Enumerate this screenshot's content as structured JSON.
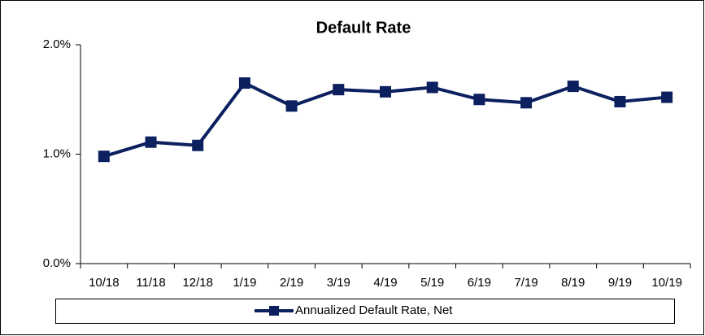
{
  "chart_data": {
    "type": "line",
    "title": "Default Rate",
    "categories": [
      "10/18",
      "11/18",
      "12/18",
      "1/19",
      "2/19",
      "3/19",
      "4/19",
      "5/19",
      "6/19",
      "7/19",
      "8/19",
      "9/19",
      "10/19"
    ],
    "series": [
      {
        "name": "Annualized Default Rate, Net",
        "color": "#0c1f5e",
        "values": [
          0.98,
          1.11,
          1.08,
          1.65,
          1.44,
          1.59,
          1.57,
          1.61,
          1.5,
          1.47,
          1.62,
          1.48,
          1.52
        ]
      }
    ],
    "ylim": [
      0,
      2
    ],
    "yticks": [
      {
        "value": 0,
        "label": "0.0%"
      },
      {
        "value": 1,
        "label": "1.0%"
      },
      {
        "value": 2,
        "label": "2.0%"
      }
    ],
    "grid": false,
    "legend": "bottom"
  }
}
